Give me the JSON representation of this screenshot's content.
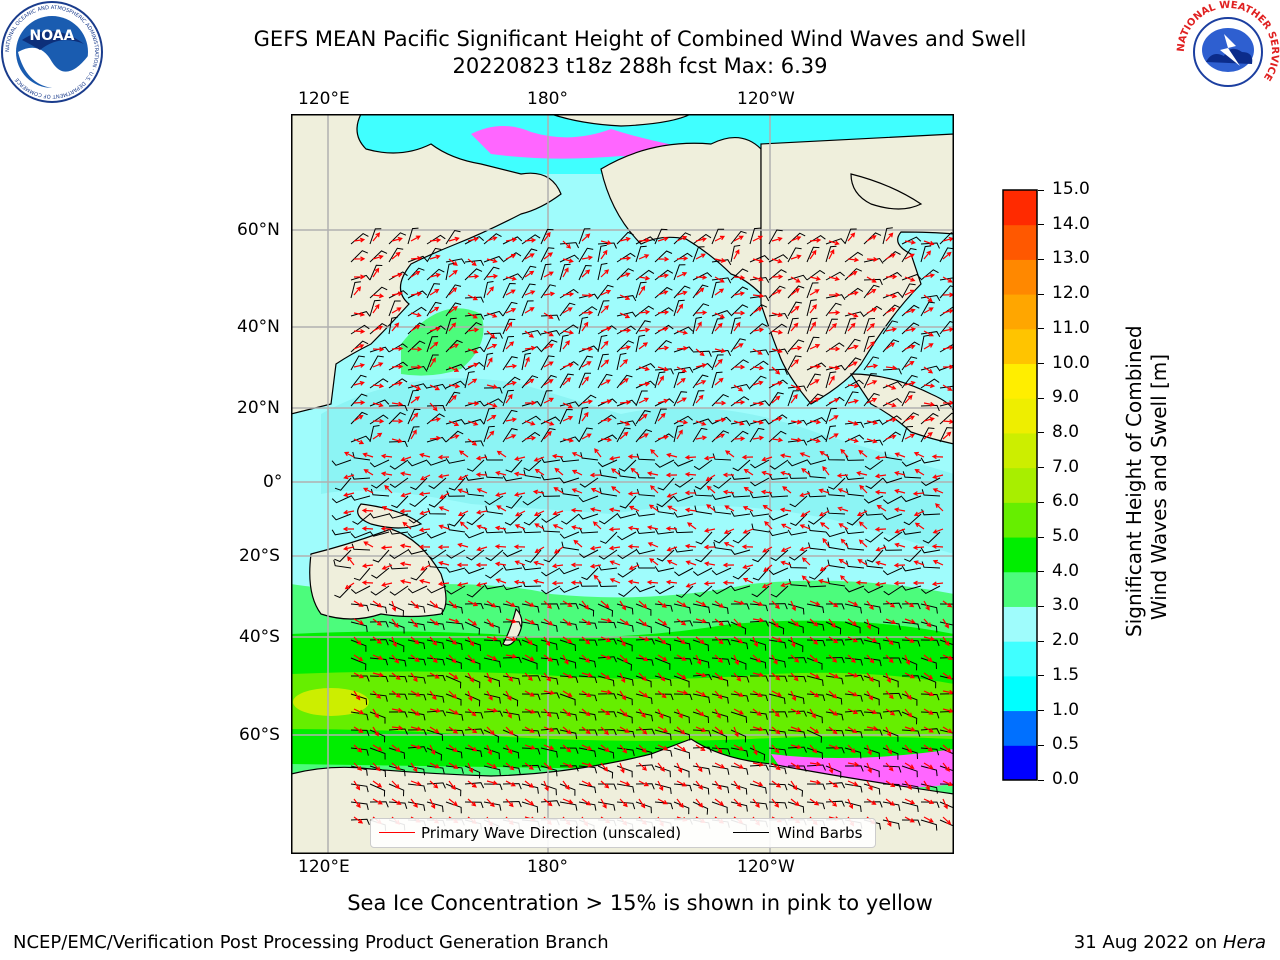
{
  "header": {
    "title_line1": "GEFS MEAN Pacific Significant Height of Combined Wind Waves and Swell",
    "title_line2": "20220823 t18z 288h fcst   Max: 6.39"
  },
  "logos": {
    "noaa_text": "NOAA",
    "noaa_ring_text": "NATIONAL OCEANIC AND ATMOSPHERIC ADMINISTRATION · U.S. DEPARTMENT OF COMMERCE",
    "nws_ring_text": "NATIONAL WEATHER SERVICE"
  },
  "chart_data": {
    "type": "heatmap",
    "title": "GEFS MEAN Pacific Significant Height of Combined Wind Waves and Swell",
    "subtitle": "20220823 t18z 288h fcst   Max: 6.39",
    "max_value": 6.39,
    "x_tick_labels": [
      "120°E",
      "180°",
      "120°W"
    ],
    "y_tick_labels": [
      "60°N",
      "40°N",
      "20°N",
      "0°",
      "20°S",
      "40°S",
      "60°S"
    ],
    "colorbar": {
      "label": "Significant Height of Combined Wind Waves and Swell [m]",
      "label_line1": "Significant Height of Combined",
      "label_line2": "Wind Waves and Swell [m]",
      "ticks": [
        "0.0",
        "0.5",
        "1.0",
        "1.5",
        "2.0",
        "3.0",
        "4.0",
        "5.0",
        "6.0",
        "7.0",
        "8.0",
        "9.0",
        "10.0",
        "11.0",
        "12.0",
        "13.0",
        "14.0",
        "15.0"
      ],
      "colors": [
        "#0000ff",
        "#0070ff",
        "#00ffff",
        "#40ffff",
        "#9ffcfc",
        "#4cfc7c",
        "#00ee00",
        "#66ee00",
        "#a8ee00",
        "#ccee00",
        "#eeee00",
        "#ffee00",
        "#ffc400",
        "#ffa600",
        "#ff8800",
        "#ff5800",
        "#ff2a00"
      ]
    },
    "legend": [
      {
        "label": "Primary Wave Direction (unscaled)",
        "color": "#ff0000"
      },
      {
        "label": "Wind Barbs",
        "color": "#000000"
      }
    ],
    "note": "Sea Ice Concentration > 15% is shown in pink to yellow"
  },
  "footer": {
    "left": "NCEP/EMC/Verification Post Processing Product Generation Branch",
    "right_date": "31 Aug 2022 on ",
    "right_host": "Hera"
  },
  "colors": {
    "land": "#efefdc",
    "grid": "#b0b0b0",
    "ice_pink": "#ff66ff",
    "arrow": "#ff0000",
    "barb": "#000000"
  }
}
